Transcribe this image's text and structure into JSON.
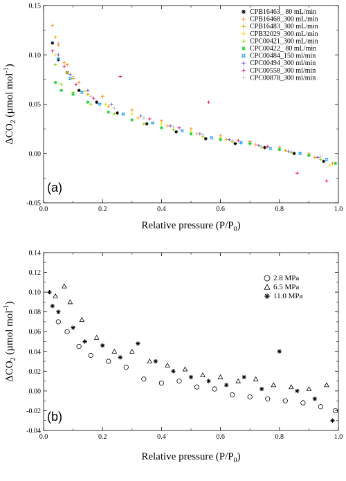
{
  "chart_data": [
    {
      "type": "scatter",
      "panel_label": "(a)",
      "xlabel": "Relative pressure (P/P0)",
      "xlabel_parts": {
        "main": "Relative pressure (P/P",
        "sub": "0",
        "tail": ")"
      },
      "ylabel_parts": {
        "delta": "Δ",
        "co": "CO",
        "sub": "2",
        "unit": " (µmol mol",
        "sup": "-1",
        "close": ")"
      },
      "xlim": [
        0,
        1
      ],
      "ylim": [
        -0.05,
        0.15
      ],
      "xticks": [
        {
          "value": 0,
          "label": "0.0"
        },
        {
          "value": 0.2,
          "label": "0.2"
        },
        {
          "value": 0.4,
          "label": "0.4"
        },
        {
          "value": 0.6,
          "label": "0.6"
        },
        {
          "value": 0.8,
          "label": "0.8"
        },
        {
          "value": 1.0,
          "label": "1.0"
        }
      ],
      "yticks": [
        {
          "value": -0.05,
          "label": "-0.05"
        },
        {
          "value": 0.0,
          "label": "0.00"
        },
        {
          "value": 0.05,
          "label": "0.05"
        },
        {
          "value": 0.1,
          "label": "0.10"
        },
        {
          "value": 0.15,
          "label": "0.15"
        }
      ],
      "legend_position": "top-right",
      "series": [
        {
          "name": "CPB16463_ 80 mL/min",
          "color": "#000000",
          "marker": "asterisk",
          "points": [
            [
              0.03,
              0.112
            ],
            [
              0.05,
              0.095
            ],
            [
              0.08,
              0.082
            ],
            [
              0.12,
              0.064
            ],
            [
              0.18,
              0.052
            ],
            [
              0.25,
              0.041
            ],
            [
              0.35,
              0.03
            ],
            [
              0.45,
              0.022
            ],
            [
              0.55,
              0.015
            ],
            [
              0.65,
              0.01
            ],
            [
              0.75,
              0.006
            ],
            [
              0.85,
              0.0
            ],
            [
              0.95,
              -0.008
            ]
          ]
        },
        {
          "name": "CPB16468_300 mL/min",
          "color": "#ff8c1a",
          "marker": "plus",
          "points": [
            [
              0.03,
              0.13
            ],
            [
              0.05,
              0.11
            ],
            [
              0.08,
              0.09
            ],
            [
              0.12,
              0.072
            ],
            [
              0.2,
              0.058
            ],
            [
              0.3,
              0.044
            ],
            [
              0.4,
              0.033
            ],
            [
              0.5,
              0.025
            ],
            [
              0.6,
              0.018
            ],
            [
              0.7,
              0.012
            ],
            [
              0.8,
              0.006
            ],
            [
              0.9,
              0.0
            ],
            [
              0.98,
              -0.01
            ]
          ]
        },
        {
          "name": "CPB16483_300 mL/min",
          "color": "#f2a000",
          "marker": "plus",
          "points": [
            [
              0.04,
              0.118
            ],
            [
              0.07,
              0.092
            ],
            [
              0.1,
              0.076
            ],
            [
              0.15,
              0.06
            ],
            [
              0.22,
              0.048
            ],
            [
              0.32,
              0.036
            ],
            [
              0.42,
              0.028
            ],
            [
              0.52,
              0.02
            ],
            [
              0.62,
              0.014
            ],
            [
              0.72,
              0.009
            ],
            [
              0.82,
              0.003
            ],
            [
              0.92,
              -0.004
            ]
          ]
        },
        {
          "name": "CPB32029_300 mL/min",
          "color": "#e8e000",
          "marker": "plus",
          "points": [
            [
              0.04,
              0.1
            ],
            [
              0.08,
              0.082
            ],
            [
              0.14,
              0.063
            ],
            [
              0.21,
              0.05
            ],
            [
              0.3,
              0.04
            ],
            [
              0.4,
              0.03
            ],
            [
              0.5,
              0.022
            ],
            [
              0.6,
              0.016
            ],
            [
              0.7,
              0.01
            ],
            [
              0.8,
              0.004
            ],
            [
              0.9,
              -0.002
            ],
            [
              0.97,
              -0.012
            ]
          ]
        },
        {
          "name": "CPC00421_300 mL/min",
          "color": "#8fd400",
          "marker": "plus",
          "points": [
            [
              0.04,
              0.09
            ],
            [
              0.06,
              0.07
            ],
            [
              0.1,
              0.062
            ],
            [
              0.16,
              0.05
            ],
            [
              0.24,
              0.04
            ],
            [
              0.34,
              0.03
            ],
            [
              0.44,
              0.024
            ],
            [
              0.54,
              0.017
            ],
            [
              0.64,
              0.012
            ],
            [
              0.74,
              0.006
            ],
            [
              0.84,
              0.001
            ],
            [
              0.94,
              -0.006
            ]
          ]
        },
        {
          "name": "CPC00422_ 80 mL/min",
          "color": "#22d13a",
          "marker": "asterisk",
          "points": [
            [
              0.04,
              0.072
            ],
            [
              0.06,
              0.064
            ],
            [
              0.1,
              0.06
            ],
            [
              0.15,
              0.052
            ],
            [
              0.22,
              0.042
            ],
            [
              0.3,
              0.034
            ],
            [
              0.4,
              0.026
            ],
            [
              0.5,
              0.02
            ],
            [
              0.6,
              0.014
            ],
            [
              0.7,
              0.01
            ],
            [
              0.8,
              0.004
            ],
            [
              0.9,
              -0.002
            ],
            [
              0.99,
              -0.01
            ]
          ]
        },
        {
          "name": "CPC00484_150 ml/min",
          "color": "#2aa7e6",
          "marker": "hash",
          "points": [
            [
              0.05,
              0.096
            ],
            [
              0.09,
              0.076
            ],
            [
              0.13,
              0.062
            ],
            [
              0.19,
              0.05
            ],
            [
              0.27,
              0.04
            ],
            [
              0.37,
              0.031
            ],
            [
              0.47,
              0.023
            ],
            [
              0.57,
              0.016
            ],
            [
              0.67,
              0.011
            ],
            [
              0.77,
              0.005
            ],
            [
              0.87,
              0.0
            ],
            [
              0.96,
              -0.006
            ]
          ]
        },
        {
          "name": "CPC00494_300 ml/min",
          "color": "#7c5ccf",
          "marker": "plus",
          "points": [
            [
              0.05,
              0.1
            ],
            [
              0.09,
              0.08
            ],
            [
              0.15,
              0.064
            ],
            [
              0.23,
              0.05
            ],
            [
              0.33,
              0.038
            ],
            [
              0.43,
              0.028
            ],
            [
              0.53,
              0.02
            ],
            [
              0.63,
              0.014
            ],
            [
              0.73,
              0.008
            ],
            [
              0.83,
              0.002
            ],
            [
              0.93,
              -0.004
            ]
          ]
        },
        {
          "name": "CPC00558_300 ml/min",
          "color": "#e6177a",
          "marker": "plus",
          "points": [
            [
              0.03,
              0.104
            ],
            [
              0.07,
              0.088
            ],
            [
              0.11,
              0.07
            ],
            [
              0.17,
              0.056
            ],
            [
              0.26,
              0.078
            ],
            [
              0.36,
              0.035
            ],
            [
              0.46,
              0.026
            ],
            [
              0.56,
              0.052
            ],
            [
              0.66,
              0.013
            ],
            [
              0.76,
              0.007
            ],
            [
              0.86,
              -0.02
            ],
            [
              0.96,
              -0.028
            ]
          ]
        },
        {
          "name": "CPC00878_300 ml/min",
          "color": "#c0c0c0",
          "marker": "plus",
          "points": [
            [
              0.05,
              0.112
            ],
            [
              0.1,
              0.078
            ],
            [
              0.16,
              0.058
            ],
            [
              0.24,
              0.046
            ],
            [
              0.34,
              0.036
            ],
            [
              0.44,
              0.027
            ],
            [
              0.54,
              0.019
            ],
            [
              0.64,
              0.013
            ],
            [
              0.74,
              0.007
            ],
            [
              0.84,
              0.002
            ],
            [
              0.94,
              -0.003
            ]
          ]
        }
      ]
    },
    {
      "type": "scatter",
      "panel_label": "(b)",
      "xlabel": "Relative pressure (P/P0)",
      "xlabel_parts": {
        "main": "Relative pressure (P/P",
        "sub": "0",
        "tail": ")"
      },
      "ylabel_parts": {
        "delta": "Δ",
        "co": "CO",
        "sub": "2",
        "unit": " (µmol mol",
        "sup": "-1",
        "close": ")"
      },
      "xlim": [
        0,
        1
      ],
      "ylim": [
        -0.04,
        0.14
      ],
      "xticks": [
        {
          "value": 0,
          "label": "0.0"
        },
        {
          "value": 0.2,
          "label": "0.2"
        },
        {
          "value": 0.4,
          "label": "0.4"
        },
        {
          "value": 0.6,
          "label": "0.6"
        },
        {
          "value": 0.8,
          "label": "0.8"
        },
        {
          "value": 1.0,
          "label": "1.0"
        }
      ],
      "yticks": [
        {
          "value": -0.04,
          "label": "-0.04"
        },
        {
          "value": -0.02,
          "label": "-0.02"
        },
        {
          "value": 0.0,
          "label": "0.00"
        },
        {
          "value": 0.02,
          "label": "0.02"
        },
        {
          "value": 0.04,
          "label": "0.04"
        },
        {
          "value": 0.06,
          "label": "0.06"
        },
        {
          "value": 0.08,
          "label": "0.08"
        },
        {
          "value": 0.1,
          "label": "0.10"
        },
        {
          "value": 0.12,
          "label": "0.12"
        },
        {
          "value": 0.14,
          "label": "0.14"
        }
      ],
      "legend_position": "top-right",
      "series": [
        {
          "name": "2.8 MPa",
          "color": "#000000",
          "marker": "circle",
          "points": [
            [
              0.05,
              0.07
            ],
            [
              0.08,
              0.06
            ],
            [
              0.12,
              0.045
            ],
            [
              0.16,
              0.036
            ],
            [
              0.22,
              0.03
            ],
            [
              0.28,
              0.024
            ],
            [
              0.34,
              0.012
            ],
            [
              0.4,
              0.008
            ],
            [
              0.46,
              0.01
            ],
            [
              0.52,
              0.004
            ],
            [
              0.58,
              0.002
            ],
            [
              0.64,
              -0.004
            ],
            [
              0.7,
              -0.006
            ],
            [
              0.76,
              -0.008
            ],
            [
              0.82,
              -0.01
            ],
            [
              0.88,
              -0.012
            ],
            [
              0.94,
              -0.016
            ],
            [
              0.99,
              -0.02
            ]
          ]
        },
        {
          "name": "6.5 MPa",
          "color": "#000000",
          "marker": "triangle",
          "points": [
            [
              0.04,
              0.096
            ],
            [
              0.07,
              0.106
            ],
            [
              0.09,
              0.09
            ],
            [
              0.13,
              0.072
            ],
            [
              0.18,
              0.054
            ],
            [
              0.24,
              0.04
            ],
            [
              0.3,
              0.04
            ],
            [
              0.36,
              0.03
            ],
            [
              0.42,
              0.026
            ],
            [
              0.48,
              0.022
            ],
            [
              0.54,
              0.016
            ],
            [
              0.6,
              0.014
            ],
            [
              0.66,
              0.01
            ],
            [
              0.72,
              0.012
            ],
            [
              0.78,
              0.006
            ],
            [
              0.84,
              0.004
            ],
            [
              0.9,
              0.002
            ],
            [
              0.96,
              0.006
            ]
          ]
        },
        {
          "name": "11.0 MPa",
          "color": "#000000",
          "marker": "asterisk",
          "points": [
            [
              0.02,
              0.1
            ],
            [
              0.03,
              0.086
            ],
            [
              0.05,
              0.08
            ],
            [
              0.1,
              0.064
            ],
            [
              0.14,
              0.05
            ],
            [
              0.2,
              0.046
            ],
            [
              0.26,
              0.034
            ],
            [
              0.32,
              0.048
            ],
            [
              0.38,
              0.03
            ],
            [
              0.44,
              0.02
            ],
            [
              0.5,
              0.014
            ],
            [
              0.56,
              0.01
            ],
            [
              0.62,
              0.006
            ],
            [
              0.68,
              0.014
            ],
            [
              0.74,
              0.002
            ],
            [
              0.8,
              0.04
            ],
            [
              0.86,
              0.0
            ],
            [
              0.92,
              -0.008
            ],
            [
              0.98,
              -0.03
            ]
          ]
        }
      ]
    }
  ]
}
